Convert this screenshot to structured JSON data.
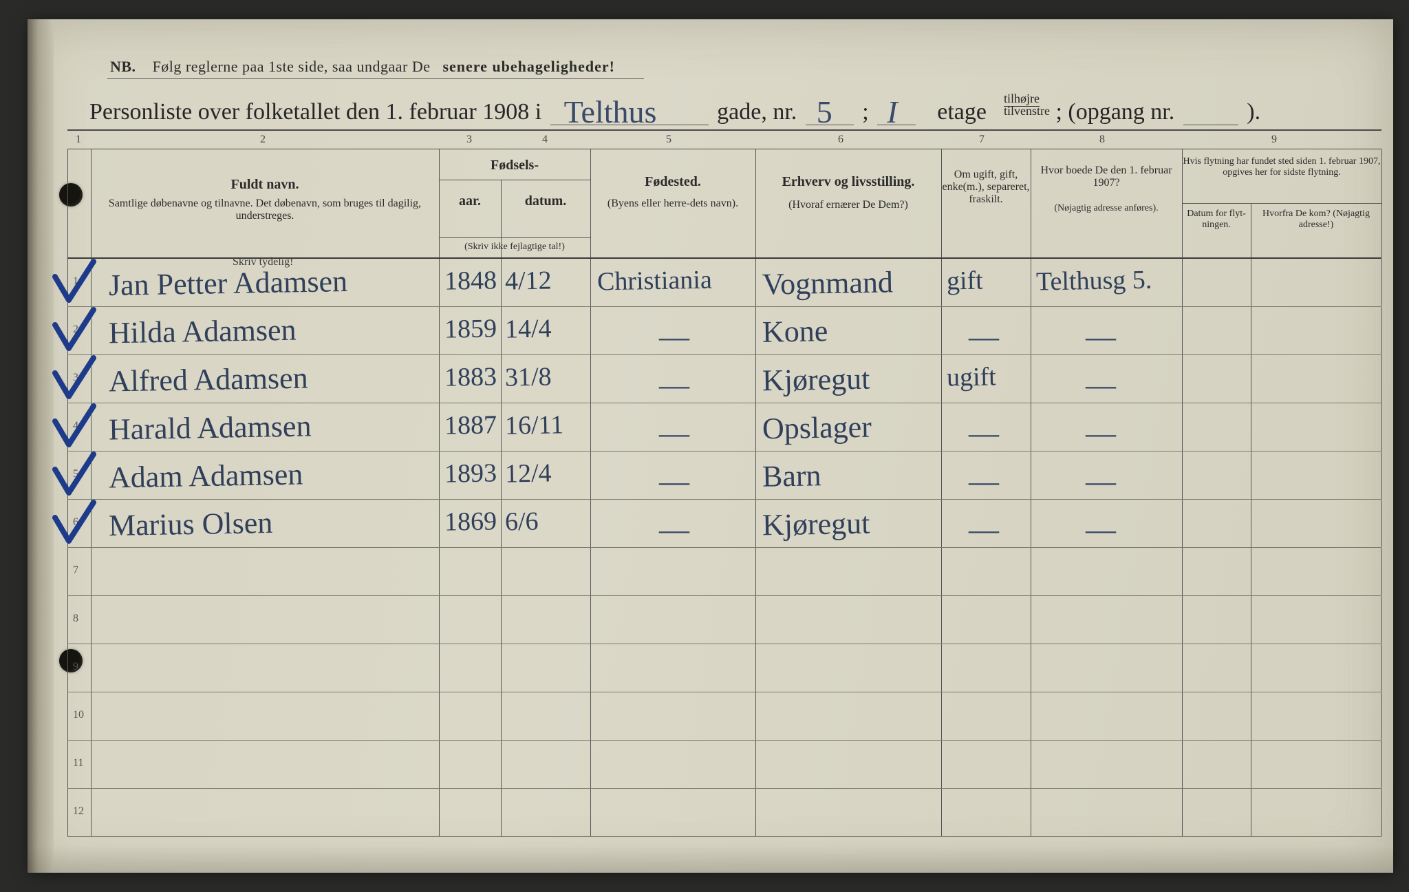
{
  "nb": {
    "prefix": "NB.",
    "text_a": "Følg reglerne paa 1ste side, saa undgaar De",
    "text_b": "senere ubehageligheder!"
  },
  "title": {
    "a": "Personliste over folketallet den 1. februar 1908 i",
    "street_hw": "Telthus",
    "b": "gade, nr.",
    "nr_hw": "5",
    "c": ";",
    "floor_hw": "I",
    "d": "etage",
    "stack_top": "tilhøjre",
    "stack_bot": "tilvenstre",
    "e": "; (opgang nr.",
    "f": ")."
  },
  "colnums": [
    "1",
    "2",
    "3",
    "4",
    "5",
    "6",
    "7",
    "8",
    "9"
  ],
  "headers": {
    "fuldt": "Fuldt navn.",
    "fuldt_sub": "Samtlige døbenavne og tilnavne. Det døbenavn, som bruges til dagilig, understreges.",
    "fodsels": "Fødsels-",
    "aar": "aar.",
    "datum": "datum.",
    "aar_note": "(Skriv ikke fejlagtige tal!)",
    "skriv_tydelig": "Skriv tydelig!",
    "fodested": "Fødested.",
    "fodested_sub": "(Byens eller herre-dets navn).",
    "erhverv": "Erhverv og livsstilling.",
    "erhverv_sub": "(Hvoraf ernærer De Dem?)",
    "ugift": "Om ugift, gift, enke(m.), separeret, fraskilt.",
    "boede": "Hvor boede De den 1. februar 1907?",
    "boede_sub": "(Nøjagtig adresse anføres).",
    "flyt": "Hvis flytning har fundet sted siden 1. februar 1907, opgives her for sidste flytning.",
    "flyt_a": "Datum for flyt-ningen.",
    "flyt_b": "Hvorfra De kom? (Nøjagtig adresse!)"
  },
  "rows": [
    {
      "n": "1",
      "name": "Jan Petter Adamsen",
      "year": "1848",
      "date": "4/12",
      "place": "Christiania",
      "occ": "Vognmand",
      "mar": "gift",
      "addr": "Telthusg 5."
    },
    {
      "n": "2",
      "name": "Hilda Adamsen",
      "year": "1859",
      "date": "14/4",
      "place": "—",
      "occ": "Kone",
      "mar": "—",
      "addr": "—"
    },
    {
      "n": "3",
      "name": "Alfred Adamsen",
      "year": "1883",
      "date": "31/8",
      "place": "—",
      "occ": "Kjøregut",
      "mar": "ugift",
      "addr": "—"
    },
    {
      "n": "4",
      "name": "Harald Adamsen",
      "year": "1887",
      "date": "16/11",
      "place": "—",
      "occ": "Opslager",
      "mar": "—",
      "addr": "—"
    },
    {
      "n": "5",
      "name": "Adam Adamsen",
      "year": "1893",
      "date": "12/4",
      "place": "—",
      "occ": "Barn",
      "mar": "—",
      "addr": "—"
    },
    {
      "n": "6",
      "name": "Marius Olsen",
      "year": "1869",
      "date": "6/6",
      "place": "—",
      "occ": "Kjøregut",
      "mar": "—",
      "addr": "—"
    },
    {
      "n": "7"
    },
    {
      "n": "8"
    },
    {
      "n": "9"
    },
    {
      "n": "10"
    },
    {
      "n": "11"
    },
    {
      "n": "12"
    }
  ],
  "style": {
    "check_color": "#1e3a8a",
    "ink_color": "#303f5a",
    "print_color": "#2b2b2b",
    "rule_color": "#555555"
  }
}
